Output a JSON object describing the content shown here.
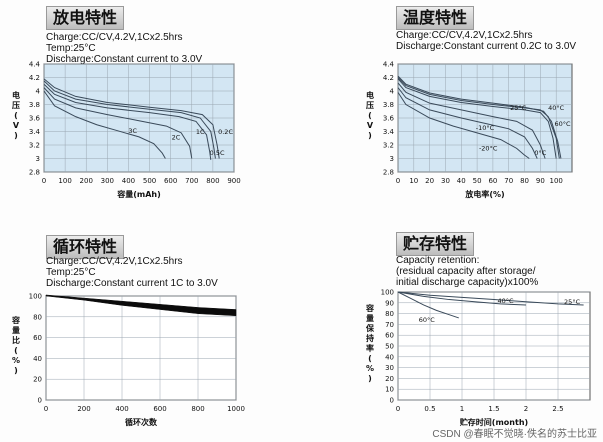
{
  "watermark": "CSDN @春眠不觉晓·佚名的苏士比亚",
  "panels": [
    {
      "title": "放电特性",
      "info": [
        "Charge:CC/CV,4.2V,1Cx2.5hrs",
        "Temp:25°C",
        "Discharge:Constant current to 3.0V"
      ]
    },
    {
      "title": "温度特性",
      "info": [
        "Charge:CC/CV,4.2V,1Cx2.5hrs",
        "Discharge:Constant current 0.2C to 3.0V"
      ]
    },
    {
      "title": "循环特性",
      "info": [
        "Charge:CC/CV,4.2V,1Cx2.5hrs",
        "Temp:25°C",
        "Discharge:Constant current 1C to 3.0V"
      ]
    },
    {
      "title": "贮存特性",
      "info": [
        "Capacity retention:",
        "(residual capacity after storage/",
        "initial discharge capacity)x100%"
      ]
    }
  ],
  "chart_data": [
    {
      "type": "line",
      "xlabel": "容量(mAh)",
      "ylabel": "电压(V)",
      "xlim": [
        0,
        900
      ],
      "ylim": [
        2.8,
        4.4
      ],
      "xticks": [
        0,
        100,
        200,
        300,
        400,
        500,
        600,
        700,
        800,
        900
      ],
      "yticks": [
        2.8,
        3.0,
        3.2,
        3.4,
        3.6,
        3.8,
        4.0,
        4.2,
        4.4
      ],
      "grid": true,
      "background": "#d3e6f3",
      "line_color": "#3a4a5a",
      "series": [
        {
          "name": "0.2C",
          "x": [
            0,
            50,
            150,
            300,
            500,
            650,
            750,
            800,
            820,
            830
          ],
          "y": [
            4.18,
            4.05,
            3.92,
            3.83,
            3.76,
            3.71,
            3.65,
            3.5,
            3.2,
            3.0
          ],
          "label_at": [
            860,
            3.36
          ]
        },
        {
          "name": "0.5C",
          "x": [
            0,
            50,
            150,
            300,
            500,
            650,
            740,
            790,
            805,
            812
          ],
          "y": [
            4.15,
            4.0,
            3.88,
            3.8,
            3.73,
            3.68,
            3.6,
            3.4,
            3.15,
            3.0
          ],
          "label_at": [
            820,
            3.05
          ]
        },
        {
          "name": "1C",
          "x": [
            0,
            50,
            150,
            300,
            500,
            640,
            720,
            770,
            785,
            790
          ],
          "y": [
            4.1,
            3.95,
            3.83,
            3.75,
            3.68,
            3.62,
            3.55,
            3.35,
            3.1,
            2.98
          ],
          "label_at": [
            740,
            3.36
          ]
        },
        {
          "name": "2C",
          "x": [
            0,
            50,
            150,
            300,
            450,
            580,
            650,
            690,
            700
          ],
          "y": [
            4.05,
            3.88,
            3.75,
            3.65,
            3.56,
            3.48,
            3.38,
            3.18,
            3.0
          ],
          "label_at": [
            625,
            3.28
          ]
        },
        {
          "name": "3C",
          "x": [
            0,
            50,
            150,
            250,
            350,
            450,
            520,
            560,
            575
          ],
          "y": [
            4.0,
            3.78,
            3.62,
            3.5,
            3.41,
            3.32,
            3.22,
            3.08,
            3.0
          ],
          "label_at": [
            420,
            3.38
          ]
        }
      ]
    },
    {
      "type": "line",
      "xlabel": "放电率(%)",
      "ylabel": "电压(V)",
      "xlim": [
        0,
        110
      ],
      "ylim": [
        2.8,
        4.4
      ],
      "xticks": [
        0,
        10,
        20,
        30,
        40,
        50,
        60,
        70,
        80,
        90,
        100
      ],
      "yticks": [
        2.8,
        3.0,
        3.2,
        3.4,
        3.6,
        3.8,
        4.0,
        4.2,
        4.4
      ],
      "grid": true,
      "background": "#d3e6f3",
      "line_color": "#3a4a5a",
      "series": [
        {
          "name": "40°C",
          "x": [
            0,
            5,
            20,
            40,
            60,
            80,
            90,
            95,
            100,
            102
          ],
          "y": [
            4.2,
            4.08,
            3.95,
            3.86,
            3.8,
            3.75,
            3.72,
            3.62,
            3.3,
            3.0
          ],
          "label_at": [
            100,
            3.72
          ]
        },
        {
          "name": "60°C",
          "x": [
            0,
            5,
            20,
            40,
            60,
            80,
            92,
            97,
            101,
            103
          ],
          "y": [
            4.22,
            4.1,
            3.97,
            3.88,
            3.82,
            3.76,
            3.7,
            3.55,
            3.25,
            3.0
          ],
          "label_at": [
            104,
            3.48
          ]
        },
        {
          "name": "25°C",
          "x": [
            0,
            5,
            20,
            40,
            60,
            80,
            90,
            95,
            98,
            100
          ],
          "y": [
            4.18,
            4.05,
            3.92,
            3.83,
            3.77,
            3.72,
            3.68,
            3.55,
            3.3,
            3.0
          ],
          "label_at": [
            76,
            3.72
          ]
        },
        {
          "name": "0°C",
          "x": [
            0,
            5,
            20,
            40,
            60,
            75,
            85,
            90,
            93
          ],
          "y": [
            4.12,
            3.98,
            3.82,
            3.72,
            3.62,
            3.55,
            3.42,
            3.2,
            3.0
          ],
          "label_at": [
            90,
            3.05
          ]
        },
        {
          "name": "-10°C",
          "x": [
            0,
            5,
            20,
            40,
            55,
            70,
            80,
            85,
            88
          ],
          "y": [
            4.05,
            3.9,
            3.72,
            3.6,
            3.52,
            3.44,
            3.32,
            3.15,
            3.0
          ],
          "label_at": [
            55,
            3.42
          ]
        },
        {
          "name": "-20°C",
          "x": [
            0,
            5,
            20,
            35,
            50,
            65,
            75,
            80,
            83
          ],
          "y": [
            3.98,
            3.8,
            3.6,
            3.48,
            3.38,
            3.28,
            3.15,
            3.05,
            3.0
          ],
          "label_at": [
            57,
            3.12
          ]
        }
      ]
    },
    {
      "type": "area",
      "xlabel": "循环次数",
      "ylabel": "容量比(%)",
      "xlim": [
        0,
        1000
      ],
      "ylim": [
        0,
        100
      ],
      "xticks": [
        0,
        200,
        400,
        600,
        800,
        1000
      ],
      "yticks": [
        0,
        20,
        40,
        60,
        80,
        100
      ],
      "grid": true,
      "band_color": "#0b0b0b",
      "band_upper": {
        "x": [
          0,
          200,
          400,
          600,
          800,
          1000
        ],
        "y": [
          101,
          98,
          95,
          92,
          89,
          87
        ]
      },
      "band_lower": {
        "x": [
          0,
          200,
          400,
          600,
          800,
          1000
        ],
        "y": [
          100,
          96,
          91,
          87,
          83,
          81
        ]
      }
    },
    {
      "type": "line",
      "xlabel": "贮存时间(month)",
      "ylabel": "容量保持率(%)",
      "xlim": [
        0,
        3
      ],
      "ylim": [
        0,
        100
      ],
      "xticks": [
        0,
        0.5,
        1,
        1.5,
        2,
        2.5
      ],
      "yticks": [
        0,
        10,
        20,
        30,
        40,
        50,
        60,
        70,
        80,
        90,
        100
      ],
      "grid": true,
      "line_color": "#3a4a5a",
      "series": [
        {
          "name": "25°C",
          "x": [
            0,
            0.5,
            1,
            1.5,
            2,
            2.5,
            2.9
          ],
          "y": [
            100,
            97,
            95,
            93,
            91,
            89,
            88
          ],
          "label_at": [
            2.72,
            89
          ]
        },
        {
          "name": "40°C",
          "x": [
            0,
            0.4,
            0.8,
            1.2,
            1.6,
            2.0
          ],
          "y": [
            100,
            96,
            93,
            91,
            89,
            88
          ],
          "label_at": [
            1.68,
            90
          ]
        },
        {
          "name": "60°C",
          "x": [
            0,
            0.2,
            0.4,
            0.6,
            0.8,
            0.95
          ],
          "y": [
            100,
            94,
            88,
            83,
            79,
            76
          ],
          "label_at": [
            0.45,
            72
          ]
        }
      ]
    }
  ]
}
